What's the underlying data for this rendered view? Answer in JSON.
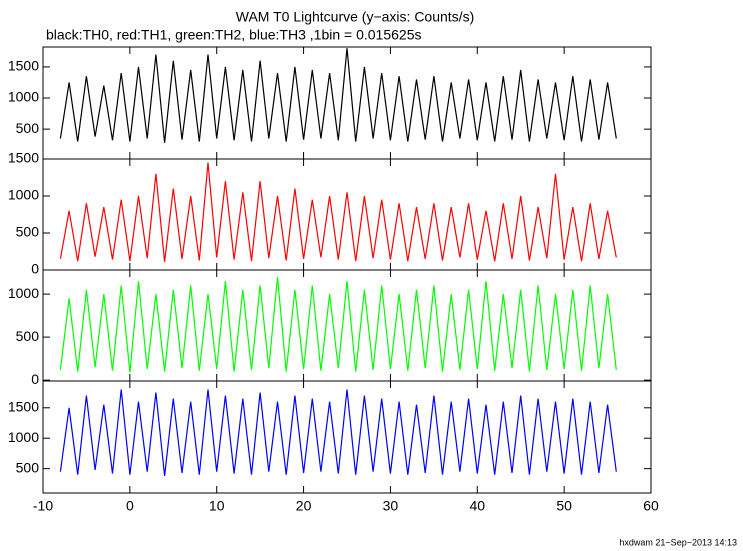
{
  "title": "WAM T0 Lightcurve (y−axis: Counts/s)",
  "subtitle": "black:TH0, red:TH1, green:TH2, blue:TH3 ,1bin = 0.015625s",
  "footer": "hxdwam 21−Sep−2013 14:13",
  "chart_data": [
    {
      "type": "line",
      "color": "#000000",
      "x": [
        -8,
        -7,
        -6,
        -5,
        -4,
        -3,
        -2,
        -1,
        0,
        1,
        2,
        3,
        4,
        5,
        6,
        7,
        8,
        9,
        10,
        11,
        12,
        13,
        14,
        15,
        16,
        17,
        18,
        19,
        20,
        21,
        22,
        23,
        24,
        25,
        26,
        27,
        28,
        29,
        30,
        31,
        32,
        33,
        34,
        35,
        36,
        37,
        38,
        39,
        40,
        41,
        42,
        43,
        44,
        45,
        46,
        47,
        48,
        49,
        50,
        51,
        52,
        53,
        54,
        55,
        56
      ],
      "values": [
        350,
        1250,
        300,
        1350,
        380,
        1200,
        320,
        1400,
        300,
        1500,
        350,
        1700,
        280,
        1600,
        330,
        1450,
        300,
        1700,
        350,
        1500,
        320,
        1450,
        300,
        1600,
        350,
        1400,
        300,
        1500,
        330,
        1450,
        350,
        1400,
        320,
        1800,
        300,
        1500,
        350,
        1400,
        320,
        1350,
        300,
        1300,
        330,
        1350,
        300,
        1250,
        350,
        1300,
        320,
        1250,
        300,
        1350,
        330,
        1450,
        300,
        1300,
        350,
        1250,
        320,
        1350,
        300,
        1300,
        330,
        1250,
        350
      ],
      "xlim": [
        -10,
        60
      ],
      "xticks": [
        -10,
        0,
        10,
        20,
        30,
        40,
        50,
        60
      ],
      "ylim": [
        20,
        1820
      ],
      "yticks": [
        500,
        1000,
        1500
      ]
    },
    {
      "type": "line",
      "color": "#ff0000",
      "x": [
        -8,
        -7,
        -6,
        -5,
        -4,
        -3,
        -2,
        -1,
        0,
        1,
        2,
        3,
        4,
        5,
        6,
        7,
        8,
        9,
        10,
        11,
        12,
        13,
        14,
        15,
        16,
        17,
        18,
        19,
        20,
        21,
        22,
        23,
        24,
        25,
        26,
        27,
        28,
        29,
        30,
        31,
        32,
        33,
        34,
        35,
        36,
        37,
        38,
        39,
        40,
        41,
        42,
        43,
        44,
        45,
        46,
        47,
        48,
        49,
        50,
        51,
        52,
        53,
        54,
        55,
        56
      ],
      "values": [
        150,
        800,
        120,
        900,
        180,
        850,
        140,
        950,
        120,
        1000,
        160,
        1300,
        110,
        1100,
        150,
        1000,
        130,
        1450,
        170,
        1200,
        140,
        1050,
        120,
        1200,
        160,
        1000,
        130,
        1100,
        150,
        950,
        170,
        1000,
        140,
        1050,
        120,
        1000,
        160,
        950,
        140,
        900,
        120,
        850,
        150,
        900,
        130,
        850,
        170,
        900,
        140,
        800,
        120,
        900,
        150,
        1000,
        130,
        850,
        160,
        1300,
        140,
        850,
        120,
        900,
        150,
        800,
        170
      ],
      "xlim": [
        -10,
        60
      ],
      "xticks": [
        -10,
        0,
        10,
        20,
        30,
        40,
        50,
        60
      ],
      "ylim": [
        0,
        1500
      ],
      "yticks": [
        0,
        500,
        1000,
        1500
      ]
    },
    {
      "type": "line",
      "color": "#00ff00",
      "x": [
        -8,
        -7,
        -6,
        -5,
        -4,
        -3,
        -2,
        -1,
        0,
        1,
        2,
        3,
        4,
        5,
        6,
        7,
        8,
        9,
        10,
        11,
        12,
        13,
        14,
        15,
        16,
        17,
        18,
        19,
        20,
        21,
        22,
        23,
        24,
        25,
        26,
        27,
        28,
        29,
        30,
        31,
        32,
        33,
        34,
        35,
        36,
        37,
        38,
        39,
        40,
        41,
        42,
        43,
        44,
        45,
        46,
        47,
        48,
        49,
        50,
        51,
        52,
        53,
        54,
        55,
        56
      ],
      "values": [
        120,
        950,
        100,
        1050,
        150,
        1000,
        110,
        1100,
        90,
        1150,
        130,
        1000,
        100,
        1050,
        140,
        1100,
        110,
        1000,
        130,
        1150,
        100,
        1050,
        120,
        1100,
        140,
        1200,
        100,
        1050,
        130,
        1100,
        110,
        1000,
        140,
        1150,
        100,
        1050,
        120,
        1100,
        130,
        1000,
        110,
        1050,
        140,
        1100,
        100,
        1000,
        120,
        1050,
        130,
        1150,
        110,
        1000,
        140,
        1050,
        100,
        1100,
        120,
        1000,
        130,
        1050,
        110,
        1100,
        140,
        1000,
        120
      ],
      "xlim": [
        -10,
        60
      ],
      "xticks": [
        -10,
        0,
        10,
        20,
        30,
        40,
        50,
        60
      ],
      "ylim": [
        -10,
        1280
      ],
      "yticks": [
        0,
        500,
        1000
      ]
    },
    {
      "type": "line",
      "color": "#0000ff",
      "x": [
        -8,
        -7,
        -6,
        -5,
        -4,
        -3,
        -2,
        -1,
        0,
        1,
        2,
        3,
        4,
        5,
        6,
        7,
        8,
        9,
        10,
        11,
        12,
        13,
        14,
        15,
        16,
        17,
        18,
        19,
        20,
        21,
        22,
        23,
        24,
        25,
        26,
        27,
        28,
        29,
        30,
        31,
        32,
        33,
        34,
        35,
        36,
        37,
        38,
        39,
        40,
        41,
        42,
        43,
        44,
        45,
        46,
        47,
        48,
        49,
        50,
        51,
        52,
        53,
        54,
        55,
        56
      ],
      "values": [
        450,
        1500,
        400,
        1700,
        480,
        1550,
        420,
        1800,
        400,
        1600,
        450,
        1750,
        380,
        1650,
        430,
        1600,
        400,
        1800,
        450,
        1700,
        420,
        1650,
        400,
        1750,
        450,
        1600,
        400,
        1700,
        430,
        1650,
        450,
        1600,
        420,
        1800,
        400,
        1700,
        450,
        1650,
        420,
        1600,
        400,
        1550,
        430,
        1700,
        400,
        1600,
        450,
        1650,
        420,
        1550,
        400,
        1600,
        430,
        1700,
        400,
        1650,
        450,
        1600,
        420,
        1650,
        400,
        1600,
        430,
        1550,
        450
      ],
      "xlim": [
        -10,
        60
      ],
      "xticks": [
        -10,
        0,
        10,
        20,
        30,
        40,
        50,
        60
      ],
      "ylim": [
        100,
        1940
      ],
      "yticks": [
        500,
        1000,
        1500
      ]
    }
  ]
}
